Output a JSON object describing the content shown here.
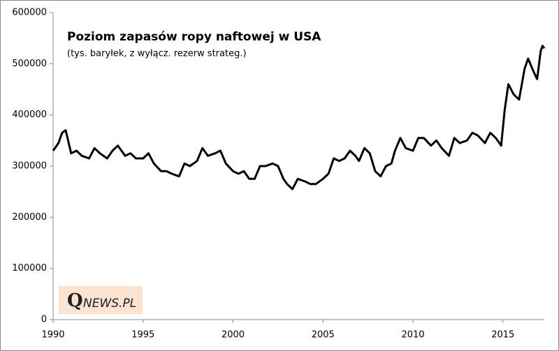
{
  "chart_data": {
    "type": "line",
    "title": "Poziom zapasów ropy naftowej w USA",
    "subtitle": "(tys. baryłek, z wyłącz. rezerw strateg.)",
    "x": [
      1990.0,
      1990.3,
      1990.5,
      1990.7,
      1991.0,
      1991.3,
      1991.6,
      1992.0,
      1992.3,
      1992.6,
      1993.0,
      1993.3,
      1993.6,
      1994.0,
      1994.3,
      1994.6,
      1995.0,
      1995.3,
      1995.6,
      1996.0,
      1996.3,
      1996.6,
      1997.0,
      1997.3,
      1997.6,
      1998.0,
      1998.3,
      1998.6,
      1999.0,
      1999.3,
      1999.6,
      2000.0,
      2000.3,
      2000.6,
      2000.9,
      2001.2,
      2001.5,
      2001.8,
      2002.2,
      2002.5,
      2002.8,
      2003.0,
      2003.3,
      2003.6,
      2004.0,
      2004.3,
      2004.6,
      2005.0,
      2005.3,
      2005.6,
      2005.9,
      2006.2,
      2006.5,
      2006.8,
      2007.0,
      2007.3,
      2007.6,
      2007.9,
      2008.2,
      2008.5,
      2008.8,
      2009.0,
      2009.3,
      2009.6,
      2010.0,
      2010.3,
      2010.6,
      2011.0,
      2011.3,
      2011.6,
      2012.0,
      2012.3,
      2012.6,
      2013.0,
      2013.3,
      2013.6,
      2014.0,
      2014.3,
      2014.6,
      2014.9,
      2015.1,
      2015.3,
      2015.6,
      2015.9,
      2016.2,
      2016.4,
      2016.7,
      2016.9,
      2017.1,
      2017.2,
      2017.3
    ],
    "values": [
      330000,
      345000,
      365000,
      370000,
      325000,
      330000,
      320000,
      315000,
      335000,
      325000,
      315000,
      330000,
      340000,
      320000,
      325000,
      315000,
      315000,
      325000,
      305000,
      290000,
      290000,
      285000,
      280000,
      305000,
      300000,
      310000,
      335000,
      320000,
      325000,
      330000,
      305000,
      290000,
      285000,
      290000,
      275000,
      275000,
      300000,
      300000,
      305000,
      300000,
      275000,
      265000,
      255000,
      275000,
      270000,
      265000,
      265000,
      275000,
      285000,
      315000,
      310000,
      315000,
      330000,
      320000,
      310000,
      335000,
      325000,
      290000,
      280000,
      300000,
      305000,
      330000,
      355000,
      335000,
      330000,
      355000,
      355000,
      340000,
      350000,
      335000,
      320000,
      355000,
      345000,
      350000,
      365000,
      360000,
      345000,
      365000,
      355000,
      340000,
      410000,
      460000,
      440000,
      430000,
      490000,
      510000,
      485000,
      470000,
      525000,
      535000,
      530000
    ],
    "color": "#000000",
    "xlim": [
      1990,
      2017.3
    ],
    "xticks": [
      1990,
      1995,
      2000,
      2005,
      2010,
      2015
    ],
    "ylim": [
      0,
      600000
    ],
    "yticks": [
      0,
      100000,
      200000,
      300000,
      400000,
      500000,
      600000
    ],
    "grid": false
  },
  "logo": {
    "initial": "Q",
    "rest": "NEWS.PL"
  }
}
